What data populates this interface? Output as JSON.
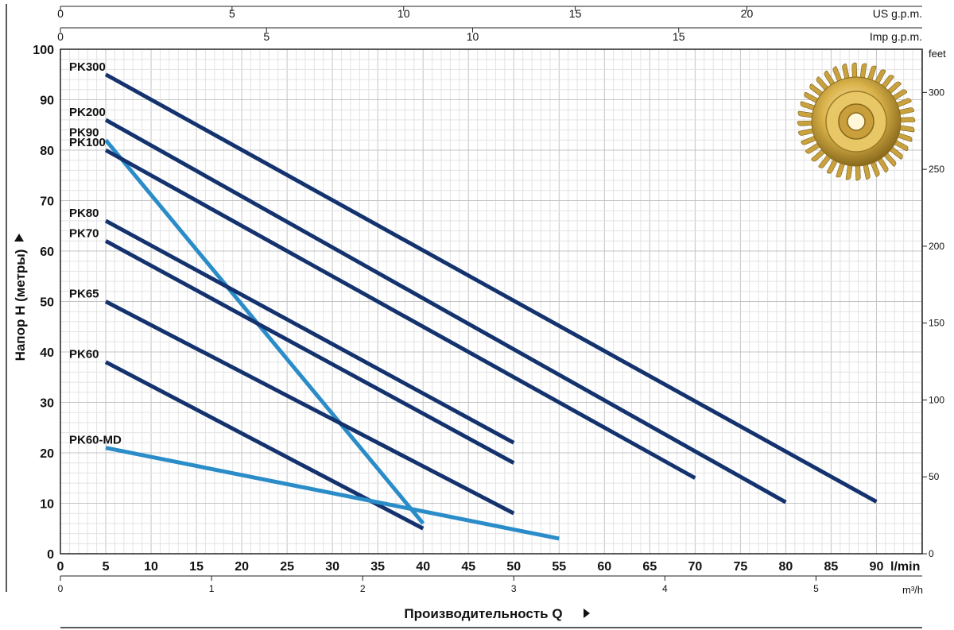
{
  "chart_data": {
    "type": "line",
    "xlabel": "Производительность Q",
    "ylabel": "Напор H (метры)",
    "y2label": "feet",
    "x_unit_label": "l/min",
    "x_unit_m3h": "m³/h",
    "us_gpm_label": "US g.p.m.",
    "imp_gpm_label": "Imp g.p.m.",
    "xlim": [
      0,
      95
    ],
    "ylim": [
      0,
      100
    ],
    "grid": true,
    "x_ticks": [
      "0",
      "5",
      "10",
      "15",
      "20",
      "25",
      "30",
      "35",
      "40",
      "45",
      "50",
      "55",
      "60",
      "65",
      "70",
      "75",
      "80",
      "85",
      "90"
    ],
    "y_ticks": [
      "0",
      "10",
      "20",
      "30",
      "40",
      "50",
      "60",
      "70",
      "80",
      "90",
      "100"
    ],
    "feet_ticks": [
      "0",
      "50",
      "100",
      "150",
      "200",
      "250",
      "300"
    ],
    "m3h_ticks": [
      "0",
      "1",
      "2",
      "3",
      "4",
      "5"
    ],
    "us_gpm_ticks": [
      "0",
      "5",
      "10",
      "15",
      "20"
    ],
    "imp_gpm_ticks": [
      "0",
      "5",
      "10",
      "15"
    ],
    "series": [
      {
        "name": "PK300",
        "color": "#14336e",
        "x": [
          5,
          90
        ],
        "y": [
          95,
          10.3
        ]
      },
      {
        "name": "PK200",
        "color": "#14336e",
        "x": [
          5,
          80
        ],
        "y": [
          86,
          10.2
        ]
      },
      {
        "name": "PK90",
        "color": "#2a8cc8",
        "x": [
          5,
          40
        ],
        "y": [
          82,
          6
        ]
      },
      {
        "name": "PK100",
        "color": "#14336e",
        "x": [
          5,
          70
        ],
        "y": [
          80,
          15
        ]
      },
      {
        "name": "PK80",
        "color": "#14336e",
        "x": [
          5,
          50
        ],
        "y": [
          66,
          22
        ]
      },
      {
        "name": "PK70",
        "color": "#14336e",
        "x": [
          5,
          50
        ],
        "y": [
          62,
          18
        ]
      },
      {
        "name": "PK65",
        "color": "#14336e",
        "x": [
          5,
          50
        ],
        "y": [
          50,
          8
        ]
      },
      {
        "name": "PK60",
        "color": "#14336e",
        "x": [
          5,
          40
        ],
        "y": [
          38,
          5
        ]
      },
      {
        "name": "PK60-MD",
        "color": "#2a8cc8",
        "x": [
          5,
          55
        ],
        "y": [
          21,
          3
        ]
      }
    ]
  },
  "image": {
    "name": "impeller-icon"
  }
}
